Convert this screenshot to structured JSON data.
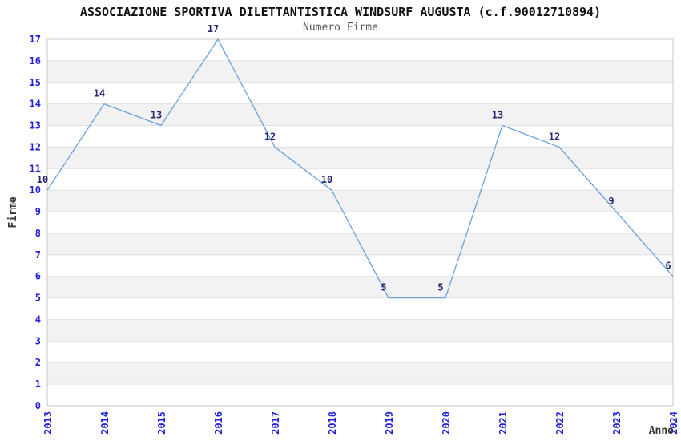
{
  "chart_data": {
    "type": "line",
    "title": "ASSOCIAZIONE SPORTIVA DILETTANTISTICA WINDSURF AUGUSTA (c.f.90012710894)",
    "subtitle": "Numero Firme",
    "xlabel": "Anno",
    "ylabel": "Firme",
    "categories": [
      "2013",
      "2014",
      "2015",
      "2016",
      "2017",
      "2018",
      "2019",
      "2020",
      "2021",
      "2022",
      "2023",
      "2024"
    ],
    "values": [
      10,
      14,
      13,
      17,
      12,
      10,
      5,
      5,
      13,
      12,
      9,
      6
    ],
    "ylim": [
      0,
      17
    ],
    "y_tick_step": 1,
    "grid": "horizontal-bands",
    "legend_position": "none",
    "colors": {
      "line": "#68a1e0",
      "band": "#f2f2f2",
      "gridline": "#e0e0e0",
      "border": "#c9c9c9",
      "tick_label": "#2020dd",
      "value_label": "#262673",
      "title": "#111111",
      "subtitle": "#555555",
      "axis_label": "#333333",
      "background": "#ffffff"
    }
  }
}
